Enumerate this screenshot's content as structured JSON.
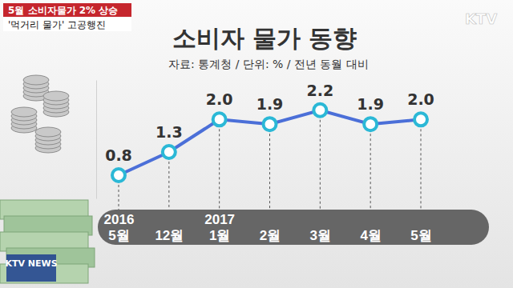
{
  "chart_data": {
    "type": "line",
    "title": "소비자 물가 동향",
    "subtitle": "자료: 통계청 / 단위: % / 전년 동월 대비",
    "annotations": [
      "5월 소비자물가 2% 상승",
      "'먹거리 물가' 고공행진",
      "KTV",
      "KTV NEWS"
    ],
    "categories": [
      "2016 5월",
      "12월",
      "2017 1월",
      "2월",
      "3월",
      "4월",
      "5월"
    ],
    "values": [
      0.8,
      1.3,
      2.0,
      1.9,
      2.2,
      1.9,
      2.0
    ],
    "value_labels": [
      "0.8",
      "1.3",
      "2.0",
      "1.9",
      "2.2",
      "1.9",
      "2.0"
    ],
    "data_labels": true,
    "tick_labels": "x",
    "color": "#4b6fd8",
    "marker": "circle",
    "ylim": [
      0.3,
      2.85
    ],
    "yticks": []
  }
}
